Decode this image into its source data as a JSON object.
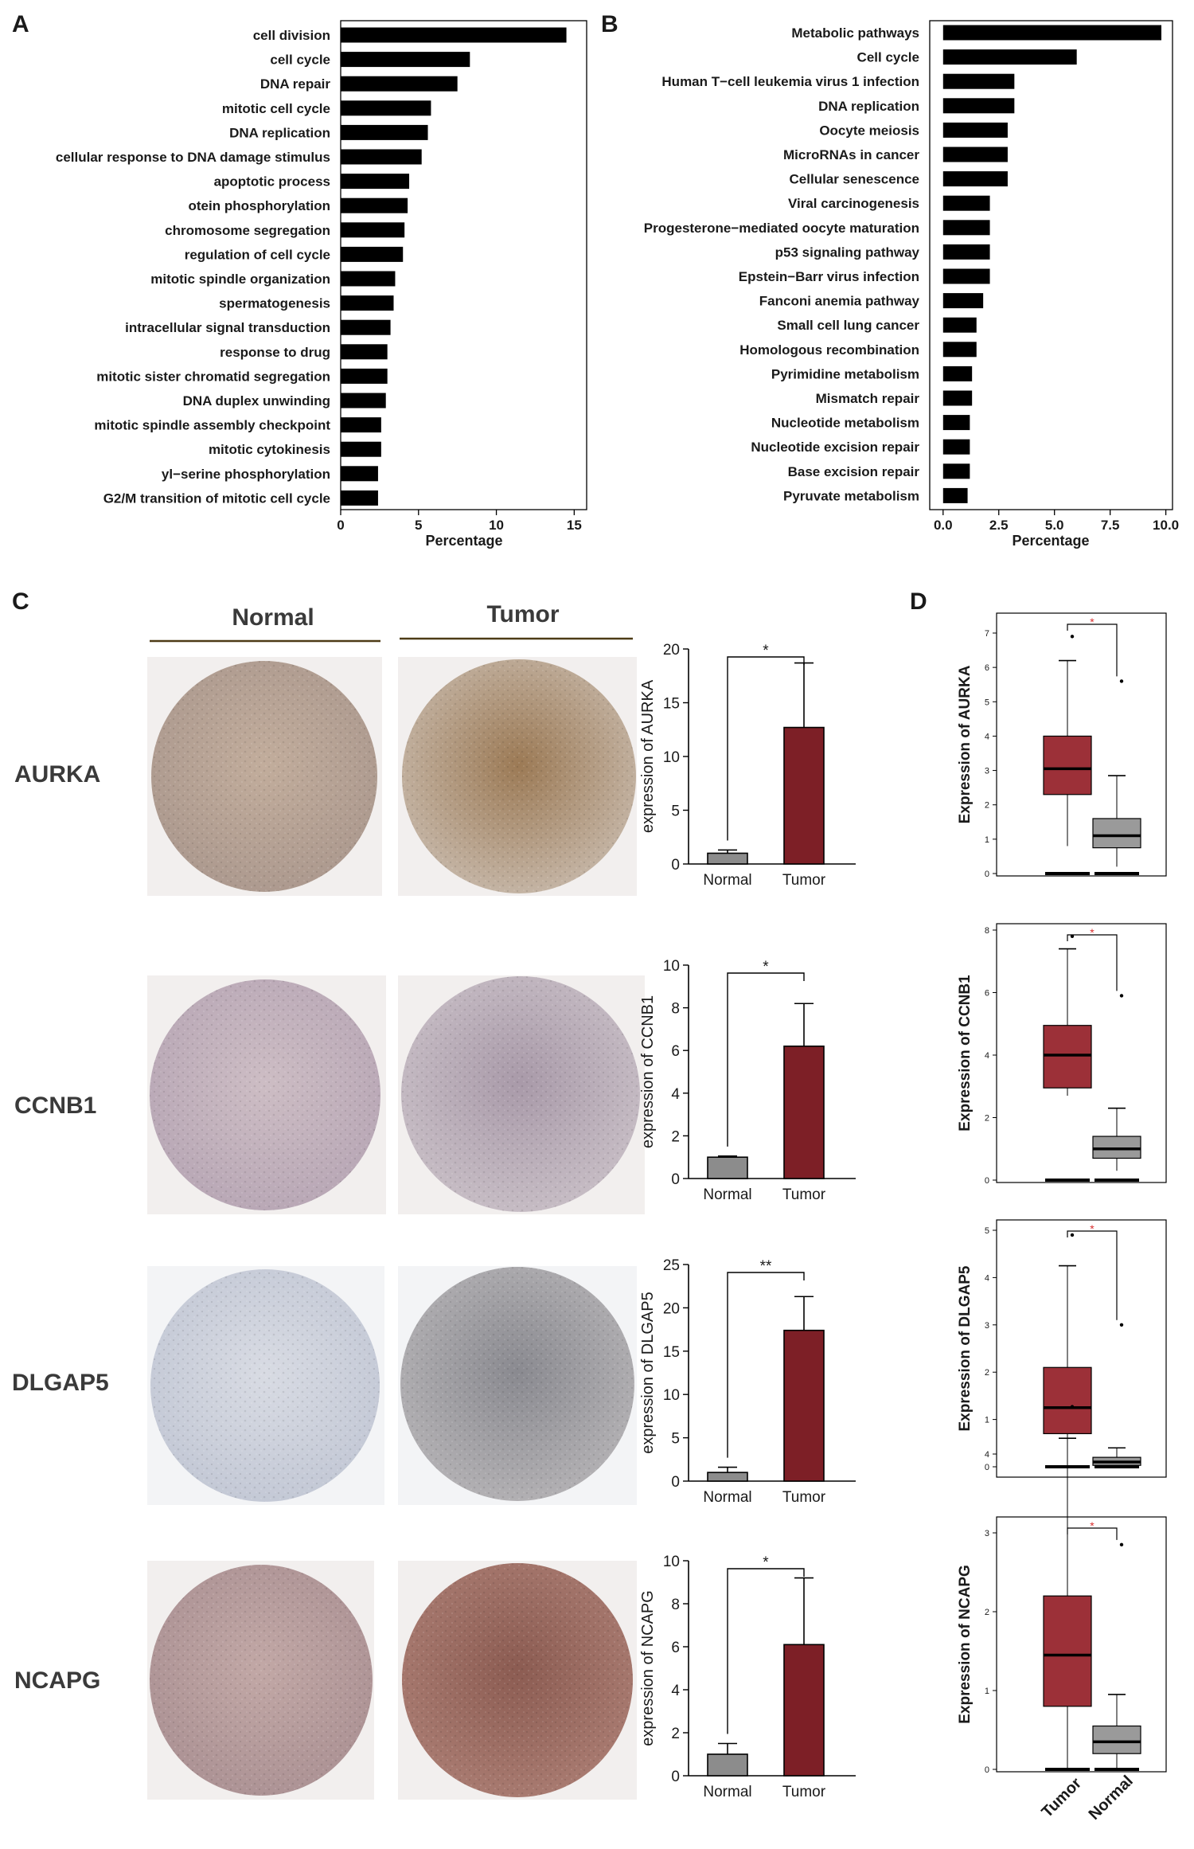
{
  "panels": {
    "a": {
      "letter": "A"
    },
    "b": {
      "letter": "B"
    },
    "c": {
      "letter": "C",
      "normal_header": "Normal",
      "tumor_header": "Tumor"
    },
    "d": {
      "letter": "D"
    }
  },
  "colors": {
    "bar": "#000000",
    "tumor": "#7d1f26",
    "tumor_box": "#9c3038",
    "normal": "#8c8c8c",
    "normal_box": "#9a9a9a",
    "significance_star": "#d93030",
    "hline": "#4d3b16"
  },
  "chart_data": [
    {
      "id": "go_terms",
      "type": "bar",
      "orientation": "horizontal",
      "categories": [
        "cell division",
        "cell cycle",
        "DNA repair",
        "mitotic cell cycle",
        "DNA replication",
        "cellular response to DNA damage stimulus",
        "apoptotic process",
        "otein phosphorylation",
        "chromosome segregation",
        "regulation of cell cycle",
        "mitotic spindle organization",
        "spermatogenesis",
        "intracellular signal transduction",
        "response to drug",
        "mitotic sister chromatid segregation",
        "DNA duplex unwinding",
        "mitotic spindle assembly checkpoint",
        "mitotic cytokinesis",
        "yl−serine phosphorylation",
        "G2/M transition of mitotic cell cycle"
      ],
      "values": [
        14.5,
        8.3,
        7.5,
        5.8,
        5.6,
        5.2,
        4.4,
        4.3,
        4.1,
        4.0,
        3.5,
        3.4,
        3.2,
        3.0,
        3.0,
        2.9,
        2.6,
        2.6,
        2.4,
        2.4
      ],
      "xlabel": "Percentage",
      "xlim": [
        0,
        15.8
      ],
      "xticks": [
        0,
        5,
        10,
        15
      ],
      "xtick_labels": [
        "0",
        "5",
        "10",
        "15"
      ],
      "grid": false
    },
    {
      "id": "kegg_pathways",
      "type": "bar",
      "orientation": "horizontal",
      "categories": [
        "Metabolic pathways",
        "Cell cycle",
        "Human T−cell leukemia virus 1 infection",
        "DNA replication",
        "Oocyte meiosis",
        "MicroRNAs in cancer",
        "Cellular senescence",
        "Viral carcinogenesis",
        "Progesterone−mediated oocyte maturation",
        "p53 signaling pathway",
        "Epstein−Barr virus infection",
        "Fanconi anemia pathway",
        "Small cell lung cancer",
        "Homologous recombination",
        "Pyrimidine metabolism",
        "Mismatch repair",
        "Nucleotide metabolism",
        "Nucleotide excision repair",
        "Base excision repair",
        "Pyruvate metabolism"
      ],
      "values": [
        9.8,
        6.0,
        3.2,
        3.2,
        2.9,
        2.9,
        2.9,
        2.1,
        2.1,
        2.1,
        2.1,
        1.8,
        1.5,
        1.5,
        1.3,
        1.3,
        1.2,
        1.2,
        1.2,
        1.1
      ],
      "xlabel": "Percentage",
      "xlim": [
        -0.6,
        10.3
      ],
      "xticks": [
        0,
        2.5,
        5,
        7.5,
        10
      ],
      "xtick_labels": [
        "0.0",
        "2.5",
        "5.0",
        "7.5",
        "10.0"
      ],
      "grid": false
    },
    {
      "id": "ihc_aurka",
      "type": "bar",
      "row_label": "AURKA",
      "categories": [
        "Normal",
        "Tumor"
      ],
      "values": [
        1.0,
        12.7
      ],
      "error_up": [
        0.3,
        6.0
      ],
      "ylabel": "expression of AURKA",
      "ylim": [
        0,
        20
      ],
      "yticks": [
        0,
        5,
        10,
        15,
        20
      ],
      "significance": "*"
    },
    {
      "id": "ihc_ccnb1",
      "type": "bar",
      "row_label": "CCNB1",
      "categories": [
        "Normal",
        "Tumor"
      ],
      "values": [
        1.0,
        6.2
      ],
      "error_up": [
        0.05,
        2.0
      ],
      "ylabel": "expression of CCNB1",
      "ylim": [
        0,
        10
      ],
      "yticks": [
        0,
        2,
        4,
        6,
        8,
        10
      ],
      "significance": "*"
    },
    {
      "id": "ihc_dlgap5",
      "type": "bar",
      "row_label": "DLGAP5",
      "categories": [
        "Normal",
        "Tumor"
      ],
      "values": [
        1.0,
        17.4
      ],
      "error_up": [
        0.6,
        3.9
      ],
      "ylabel": "expression of DLGAP5",
      "ylim": [
        0,
        25
      ],
      "yticks": [
        0,
        5,
        10,
        15,
        20,
        25
      ],
      "significance": "**"
    },
    {
      "id": "ihc_ncapg",
      "type": "bar",
      "row_label": "NCAPG",
      "categories": [
        "Normal",
        "Tumor"
      ],
      "values": [
        1.0,
        6.1
      ],
      "error_up": [
        0.5,
        3.1
      ],
      "ylabel": "expression of NCAPG",
      "ylim": [
        0,
        10
      ],
      "yticks": [
        0,
        2,
        4,
        6,
        8,
        10
      ],
      "significance": "*"
    },
    {
      "id": "gepia_aurka",
      "type": "box",
      "categories": [
        "Tumor",
        "Normal"
      ],
      "ylabel": "Expression of  AURKA",
      "ylim": [
        0,
        7
      ],
      "yticks": [
        0,
        1,
        2,
        3,
        4,
        5,
        6,
        7
      ],
      "boxes": [
        {
          "min": 0.8,
          "q1": 2.3,
          "median": 3.05,
          "q3": 4.0,
          "max": 6.2
        },
        {
          "min": 0.2,
          "q1": 0.75,
          "median": 1.1,
          "q3": 1.6,
          "max": 2.85
        }
      ],
      "outlier_max": [
        6.9,
        5.6
      ],
      "significance": "*"
    },
    {
      "id": "gepia_ccnb1",
      "type": "box",
      "categories": [
        "Tumor",
        "Normal"
      ],
      "ylabel": "Expression of  CCNB1",
      "ylim": [
        0,
        8
      ],
      "yticks": [
        0,
        2,
        4,
        6,
        8
      ],
      "boxes": [
        {
          "min": 2.7,
          "q1": 2.95,
          "median": 4.0,
          "q3": 4.95,
          "max": 7.4
        },
        {
          "min": 0.3,
          "q1": 0.7,
          "median": 1.0,
          "q3": 1.4,
          "max": 2.3
        }
      ],
      "outlier_max": [
        7.8,
        5.9
      ],
      "significance": "*"
    },
    {
      "id": "gepia_dlgap5",
      "type": "box",
      "categories": [
        "Tumor",
        "Normal"
      ],
      "ylabel": "Expression of  DLGAP5",
      "ylim": [
        0,
        5
      ],
      "yticks": [
        0,
        1,
        2,
        3,
        4,
        5
      ],
      "boxes": [
        {
          "min": 0.0,
          "q1": 0.7,
          "median": 1.25,
          "q3": 2.1,
          "max": 4.25
        },
        {
          "min": 0.0,
          "q1": 0.03,
          "median": 0.1,
          "q3": 0.2,
          "max": 0.4
        }
      ],
      "outlier_max": [
        4.9,
        3.0
      ],
      "significance": "*"
    },
    {
      "id": "gepia_ncapg",
      "type": "box",
      "categories": [
        "Tumor",
        "Normal"
      ],
      "ylabel": "Expression of  NCAPG",
      "ylim": [
        0,
        5
      ],
      "yticks": [
        0,
        1,
        2,
        3,
        4
      ],
      "boxes": [
        {
          "min": 0.0,
          "q1": 0.8,
          "median": 1.45,
          "q3": 2.2,
          "max": 4.2
        },
        {
          "min": 0.0,
          "q1": 0.2,
          "median": 0.35,
          "q3": 0.55,
          "max": 0.95
        }
      ],
      "outlier_max": [
        4.6,
        2.85
      ],
      "significance": "*"
    }
  ]
}
